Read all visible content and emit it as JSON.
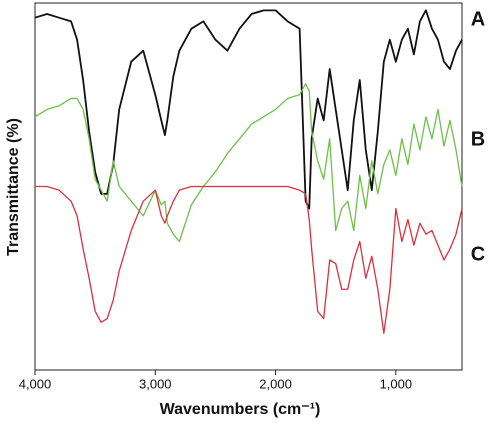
{
  "chart_data": {
    "type": "line",
    "xlabel": "Wavenumbers (cm⁻¹)",
    "ylabel": "Transmittance (%)",
    "x": [
      4000,
      3900,
      3800,
      3700,
      3650,
      3600,
      3550,
      3500,
      3450,
      3400,
      3350,
      3300,
      3200,
      3100,
      3000,
      2950,
      2920,
      2900,
      2850,
      2800,
      2700,
      2600,
      2500,
      2400,
      2300,
      2200,
      2100,
      2000,
      1900,
      1800,
      1750,
      1720,
      1700,
      1650,
      1600,
      1550,
      1500,
      1450,
      1400,
      1350,
      1300,
      1250,
      1200,
      1150,
      1100,
      1050,
      1000,
      950,
      900,
      850,
      800,
      750,
      700,
      650,
      600,
      550,
      500,
      450
    ],
    "series": [
      {
        "name": "A",
        "color": "#111111",
        "values": [
          96,
          97,
          96,
          95,
          90,
          79,
          65,
          54,
          48,
          48,
          56,
          71,
          84,
          87,
          75,
          68,
          64,
          68,
          80,
          87,
          93,
          95,
          90,
          87,
          93,
          97,
          98,
          98,
          95,
          93,
          46,
          44,
          63,
          74,
          68,
          82,
          71,
          60,
          49,
          68,
          79,
          60,
          49,
          65,
          84,
          90,
          84,
          90,
          93,
          86,
          95,
          98,
          93,
          90,
          84,
          82,
          87,
          90
        ]
      },
      {
        "name": "B",
        "color": "#6fbf4a",
        "values": [
          69,
          71,
          72,
          74,
          74,
          71,
          63,
          52,
          49,
          46,
          57,
          50,
          46,
          42,
          49,
          45,
          46,
          40,
          37,
          35,
          45,
          50,
          54,
          59,
          63,
          67,
          69,
          71,
          74,
          75,
          78,
          76,
          65,
          57,
          52,
          63,
          38,
          44,
          46,
          38,
          53,
          44,
          57,
          48,
          56,
          60,
          53,
          63,
          56,
          67,
          60,
          69,
          63,
          71,
          61,
          68,
          60,
          50
        ]
      },
      {
        "name": "C",
        "color": "#d9313f",
        "values": [
          50,
          50,
          49,
          46,
          42,
          33,
          25,
          16,
          13,
          14,
          19,
          27,
          38,
          46,
          49,
          42,
          40,
          42,
          46,
          49,
          50,
          50,
          50,
          50,
          50,
          50,
          50,
          50,
          50,
          49,
          48,
          41,
          33,
          16,
          14,
          30,
          29,
          22,
          22,
          30,
          35,
          25,
          31,
          22,
          10,
          22,
          44,
          35,
          41,
          34,
          40,
          37,
          38,
          34,
          30,
          33,
          37,
          44
        ]
      }
    ],
    "xlim": [
      4000,
      450
    ],
    "xticks": [
      {
        "value": 4000,
        "label": "4,000"
      },
      {
        "value": 3000,
        "label": "3,000"
      },
      {
        "value": 2000,
        "label": "2,000"
      },
      {
        "value": 1000,
        "label": "1,000"
      }
    ],
    "ylim": [
      0,
      100
    ]
  }
}
